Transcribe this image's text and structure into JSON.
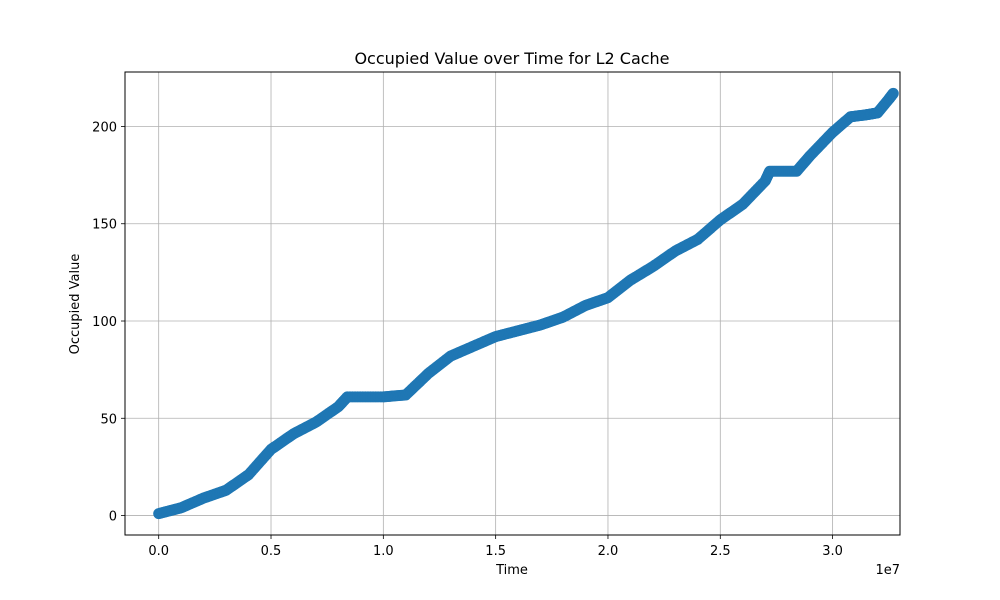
{
  "chart_data": {
    "type": "scatter",
    "title": "Occupied Value over Time for L2 Cache",
    "xlabel": "Time",
    "ylabel": "Occupied Value",
    "x_offset_label": "1e7",
    "xlim": [
      -0.15,
      3.3
    ],
    "ylim": [
      -10,
      228
    ],
    "x_ticks": [
      0.0,
      0.5,
      1.0,
      1.5,
      2.0,
      2.5,
      3.0
    ],
    "x_tick_labels": [
      "0.0",
      "0.5",
      "1.0",
      "1.5",
      "2.0",
      "2.5",
      "3.0"
    ],
    "y_ticks": [
      0,
      50,
      100,
      150,
      200
    ],
    "y_tick_labels": [
      "0",
      "50",
      "100",
      "150",
      "200"
    ],
    "grid": true,
    "marker_color": "#1f77b4",
    "series": [
      {
        "x": [
          0.0,
          0.1,
          0.2,
          0.3,
          0.4,
          0.5,
          0.6,
          0.7,
          0.8,
          0.84,
          1.0,
          1.1,
          1.2,
          1.3,
          1.4,
          1.5,
          1.6,
          1.7,
          1.8,
          1.9,
          2.0,
          2.1,
          2.2,
          2.3,
          2.4,
          2.5,
          2.6,
          2.7,
          2.72,
          2.84,
          2.9,
          3.0,
          3.08,
          3.15,
          3.2,
          3.25,
          3.27
        ],
        "y": [
          1,
          4,
          9,
          13,
          21,
          34,
          42,
          48,
          56,
          61,
          61,
          62,
          73,
          82,
          87,
          92,
          95,
          98,
          102,
          108,
          112,
          121,
          128,
          136,
          142,
          152,
          160,
          172,
          177,
          177,
          185,
          197,
          205,
          206,
          207,
          214,
          217
        ]
      }
    ]
  }
}
